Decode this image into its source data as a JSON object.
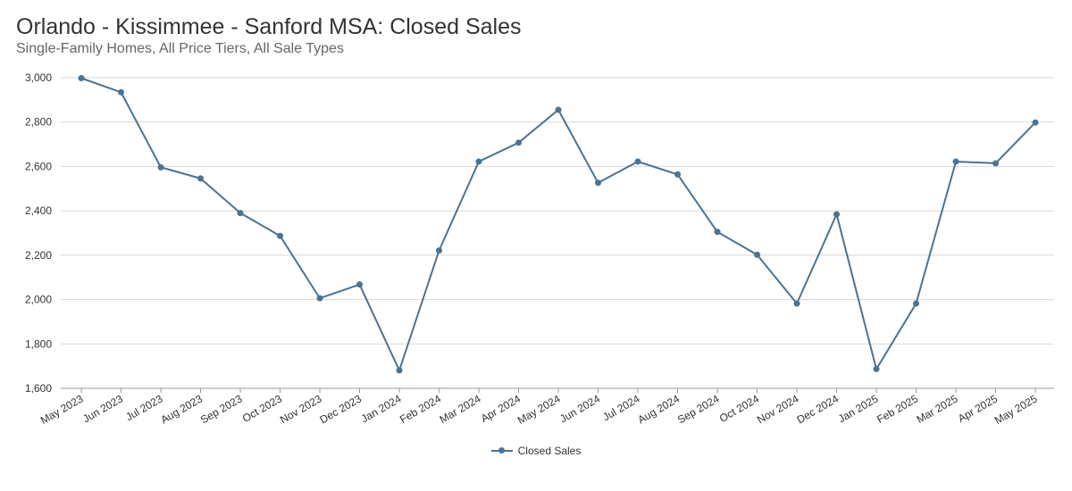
{
  "title": "Orlando - Kissimmee - Sanford MSA: Closed Sales",
  "subtitle": "Single-Family Homes, All Price Tiers, All Sale Types",
  "chart_data": {
    "type": "line",
    "categories": [
      "May 2023",
      "Jun 2023",
      "Jul 2023",
      "Aug 2023",
      "Sep 2023",
      "Oct 2023",
      "Nov 2023",
      "Dec 2023",
      "Jan 2024",
      "Feb 2024",
      "Mar 2024",
      "Apr 2024",
      "May 2024",
      "Jun 2024",
      "Jul 2024",
      "Aug 2024",
      "Sep 2024",
      "Oct 2024",
      "Nov 2024",
      "Dec 2024",
      "Jan 2025",
      "Feb 2025",
      "Mar 2025",
      "Apr 2025",
      "May 2025"
    ],
    "series": [
      {
        "name": "Closed Sales",
        "color": "#4a7394",
        "values": [
          2998,
          2934,
          2596,
          2546,
          2390,
          2287,
          2006,
          2068,
          1681,
          2221,
          2622,
          2707,
          2855,
          2526,
          2622,
          2564,
          2305,
          2202,
          1982,
          2384,
          1687,
          1982,
          2622,
          2614,
          2798
        ]
      }
    ],
    "yticks": [
      "1,600",
      "1,800",
      "2,000",
      "2,200",
      "2,400",
      "2,600",
      "2,800",
      "3,000"
    ],
    "ylim": [
      1600,
      3000
    ],
    "grid": true,
    "legend_position": "bottom-center"
  }
}
